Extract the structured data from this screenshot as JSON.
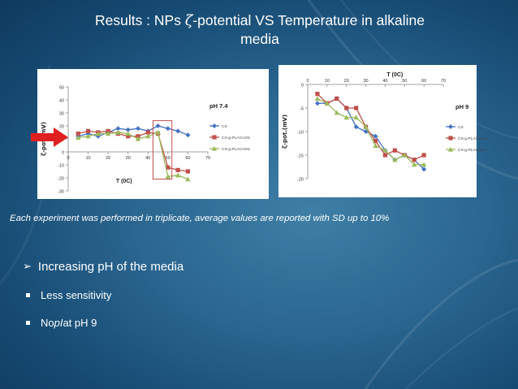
{
  "slide": {
    "title_prefix": "Results : NPs ",
    "title_symbol": "ζ",
    "title_suffix": "-potential VS Temperature in alkaline",
    "title_line2": "media",
    "caption": "Each experiment was performed in triplicate, average values are reported with SD up to 10%",
    "bullet_main_prefix": "Increasing pH of the media",
    "bullet_sub1": "Less sensitivity",
    "bullet_sub2_prefix": "No ",
    "bullet_sub2_italic": "pI",
    "bullet_sub2_suffix": " at pH 9",
    "colors": {
      "background": "#2a6690",
      "cs": "#4472c4",
      "placa2": "#c0504d",
      "placa5": "#9bbb59",
      "arrow": "#e02020"
    }
  },
  "chart_data": [
    {
      "type": "line",
      "title": "pH 7.4",
      "xlabel": "T (0C)",
      "ylabel": "ζ-pot.(mV)",
      "xlim": [
        0,
        70
      ],
      "ylim": [
        -30,
        50
      ],
      "xticks": [
        0,
        10,
        20,
        30,
        40,
        50,
        60,
        70
      ],
      "yticks": [
        50,
        40,
        30,
        20,
        10,
        0,
        -10,
        -20,
        -30
      ],
      "series": [
        {
          "name": "CS",
          "x": [
            5,
            10,
            15,
            20,
            25,
            30,
            35,
            40,
            45,
            50,
            55,
            60
          ],
          "y": [
            12,
            14,
            12,
            15,
            18,
            17,
            18,
            16,
            20,
            18,
            16,
            13
          ]
        },
        {
          "name": "CS-g-PLACA2%",
          "x": [
            5,
            10,
            15,
            20,
            25,
            30,
            35,
            40,
            45,
            50,
            55,
            60
          ],
          "y": [
            14,
            16,
            15,
            16,
            14,
            12,
            12,
            15,
            14,
            -12,
            -14,
            -15
          ]
        },
        {
          "name": "CS-g-PLACA5%",
          "x": [
            5,
            10,
            15,
            20,
            25,
            30,
            35,
            40,
            45,
            50,
            55,
            60
          ],
          "y": [
            11,
            12,
            14,
            14,
            15,
            14,
            10,
            12,
            15,
            -19,
            -18,
            -21
          ]
        }
      ],
      "legend": "right"
    },
    {
      "type": "line",
      "title": "pH 9",
      "xlabel": "T (0C)",
      "ylabel": "ζ-pot.(mV)",
      "xlim": [
        0,
        70
      ],
      "ylim": [
        -20,
        0
      ],
      "xticks": [
        0,
        10,
        20,
        30,
        40,
        50,
        60,
        70
      ],
      "yticks": [
        0,
        -5,
        -10,
        -15,
        -20
      ],
      "series": [
        {
          "name": "CS",
          "x": [
            5,
            10,
            15,
            20,
            25,
            30,
            35,
            40,
            45,
            50,
            55,
            60
          ],
          "y": [
            -4,
            -4,
            -3,
            -5,
            -9,
            -10,
            -11,
            -14,
            -16,
            -15,
            -16,
            -18
          ]
        },
        {
          "name": "CS-g-PLACA2%",
          "x": [
            5,
            10,
            15,
            20,
            25,
            30,
            35,
            40,
            45,
            50,
            55,
            60
          ],
          "y": [
            -2,
            -4,
            -3,
            -5,
            -5,
            -9,
            -12,
            -15,
            -14,
            -15,
            -16,
            -15
          ]
        },
        {
          "name": "CS-g-PLACA5%",
          "x": [
            5,
            10,
            15,
            20,
            25,
            30,
            35,
            40,
            45,
            50,
            55,
            60
          ],
          "y": [
            -3,
            -4,
            -6,
            -7,
            -7,
            -9,
            -13,
            -14,
            -16,
            -15,
            -17,
            -17
          ]
        }
      ],
      "legend": "right"
    }
  ]
}
